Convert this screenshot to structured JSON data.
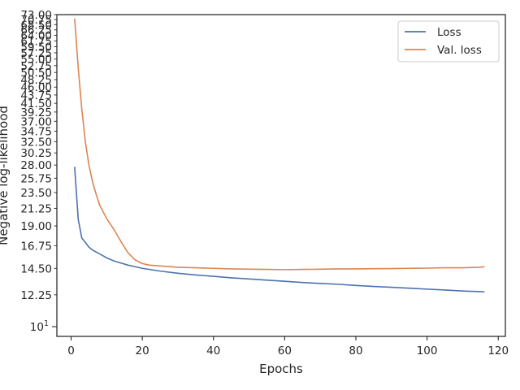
{
  "chart_data": {
    "type": "line",
    "title": "",
    "xlabel": "Epochs",
    "ylabel": "Negative log-likelihood",
    "xlim": [
      -4,
      122
    ],
    "ylim": [
      9.4,
      73
    ],
    "y_scale": "log",
    "grid": false,
    "legend_position": "top-right",
    "x_ticks": [
      0,
      20,
      40,
      60,
      80,
      100,
      120
    ],
    "x_tick_labels": [
      "0",
      "20",
      "40",
      "60",
      "80",
      "100",
      "120"
    ],
    "y_major_tick": {
      "value": 10,
      "label": "10",
      "exponent": "1"
    },
    "y_minor_ticks": [
      12.25,
      14.5,
      16.75,
      19.0,
      21.25,
      23.5,
      25.75,
      28.0,
      30.25,
      32.5,
      34.75,
      37.0,
      39.25,
      41.5,
      43.75,
      46.0,
      48.25,
      50.5,
      52.75,
      55.0,
      57.25,
      59.5,
      61.75,
      64.0,
      66.25,
      68.5,
      70.75,
      73.0
    ],
    "y_minor_tick_labels": [
      "12.25",
      "14.50",
      "16.75",
      "19.00",
      "21.25",
      "23.50",
      "25.75",
      "28.00",
      "30.25",
      "32.50",
      "34.75",
      "37.00",
      "39.25",
      "41.50",
      "43.75",
      "46.00",
      "48.25",
      "50.50",
      "52.75",
      "55.00",
      "57.25",
      "59.50",
      "61.75",
      "64.00",
      "66.25",
      "68.50",
      "70.75",
      "73.00"
    ],
    "series": [
      {
        "name": "Loss",
        "color": "#4c72b0",
        "x": [
          1,
          2,
          3,
          4,
          5,
          6,
          8,
          10,
          12,
          14,
          16,
          18,
          20,
          25,
          30,
          35,
          40,
          45,
          50,
          55,
          60,
          65,
          70,
          75,
          80,
          85,
          90,
          95,
          100,
          105,
          110,
          115,
          116
        ],
        "y": [
          27.6,
          19.8,
          17.6,
          17.1,
          16.6,
          16.3,
          15.9,
          15.5,
          15.2,
          15.0,
          14.8,
          14.65,
          14.5,
          14.25,
          14.05,
          13.9,
          13.78,
          13.65,
          13.55,
          13.45,
          13.35,
          13.25,
          13.17,
          13.1,
          13.0,
          12.92,
          12.85,
          12.78,
          12.7,
          12.63,
          12.55,
          12.5,
          12.48
        ]
      },
      {
        "name": "Val. loss",
        "color": "#dd8452",
        "x": [
          1,
          2,
          3,
          4,
          5,
          6,
          7,
          8,
          10,
          12,
          14,
          16,
          18,
          20,
          22,
          25,
          30,
          35,
          40,
          45,
          50,
          55,
          60,
          65,
          70,
          75,
          80,
          85,
          90,
          95,
          100,
          105,
          110,
          115,
          116
        ],
        "y": [
          71.0,
          52.0,
          40.0,
          32.5,
          28.0,
          25.2,
          23.3,
          21.7,
          19.9,
          18.6,
          17.2,
          16.0,
          15.3,
          14.95,
          14.8,
          14.72,
          14.6,
          14.55,
          14.5,
          14.45,
          14.42,
          14.4,
          14.38,
          14.4,
          14.42,
          14.45,
          14.45,
          14.47,
          14.48,
          14.5,
          14.52,
          14.55,
          14.55,
          14.6,
          14.65
        ]
      }
    ]
  }
}
